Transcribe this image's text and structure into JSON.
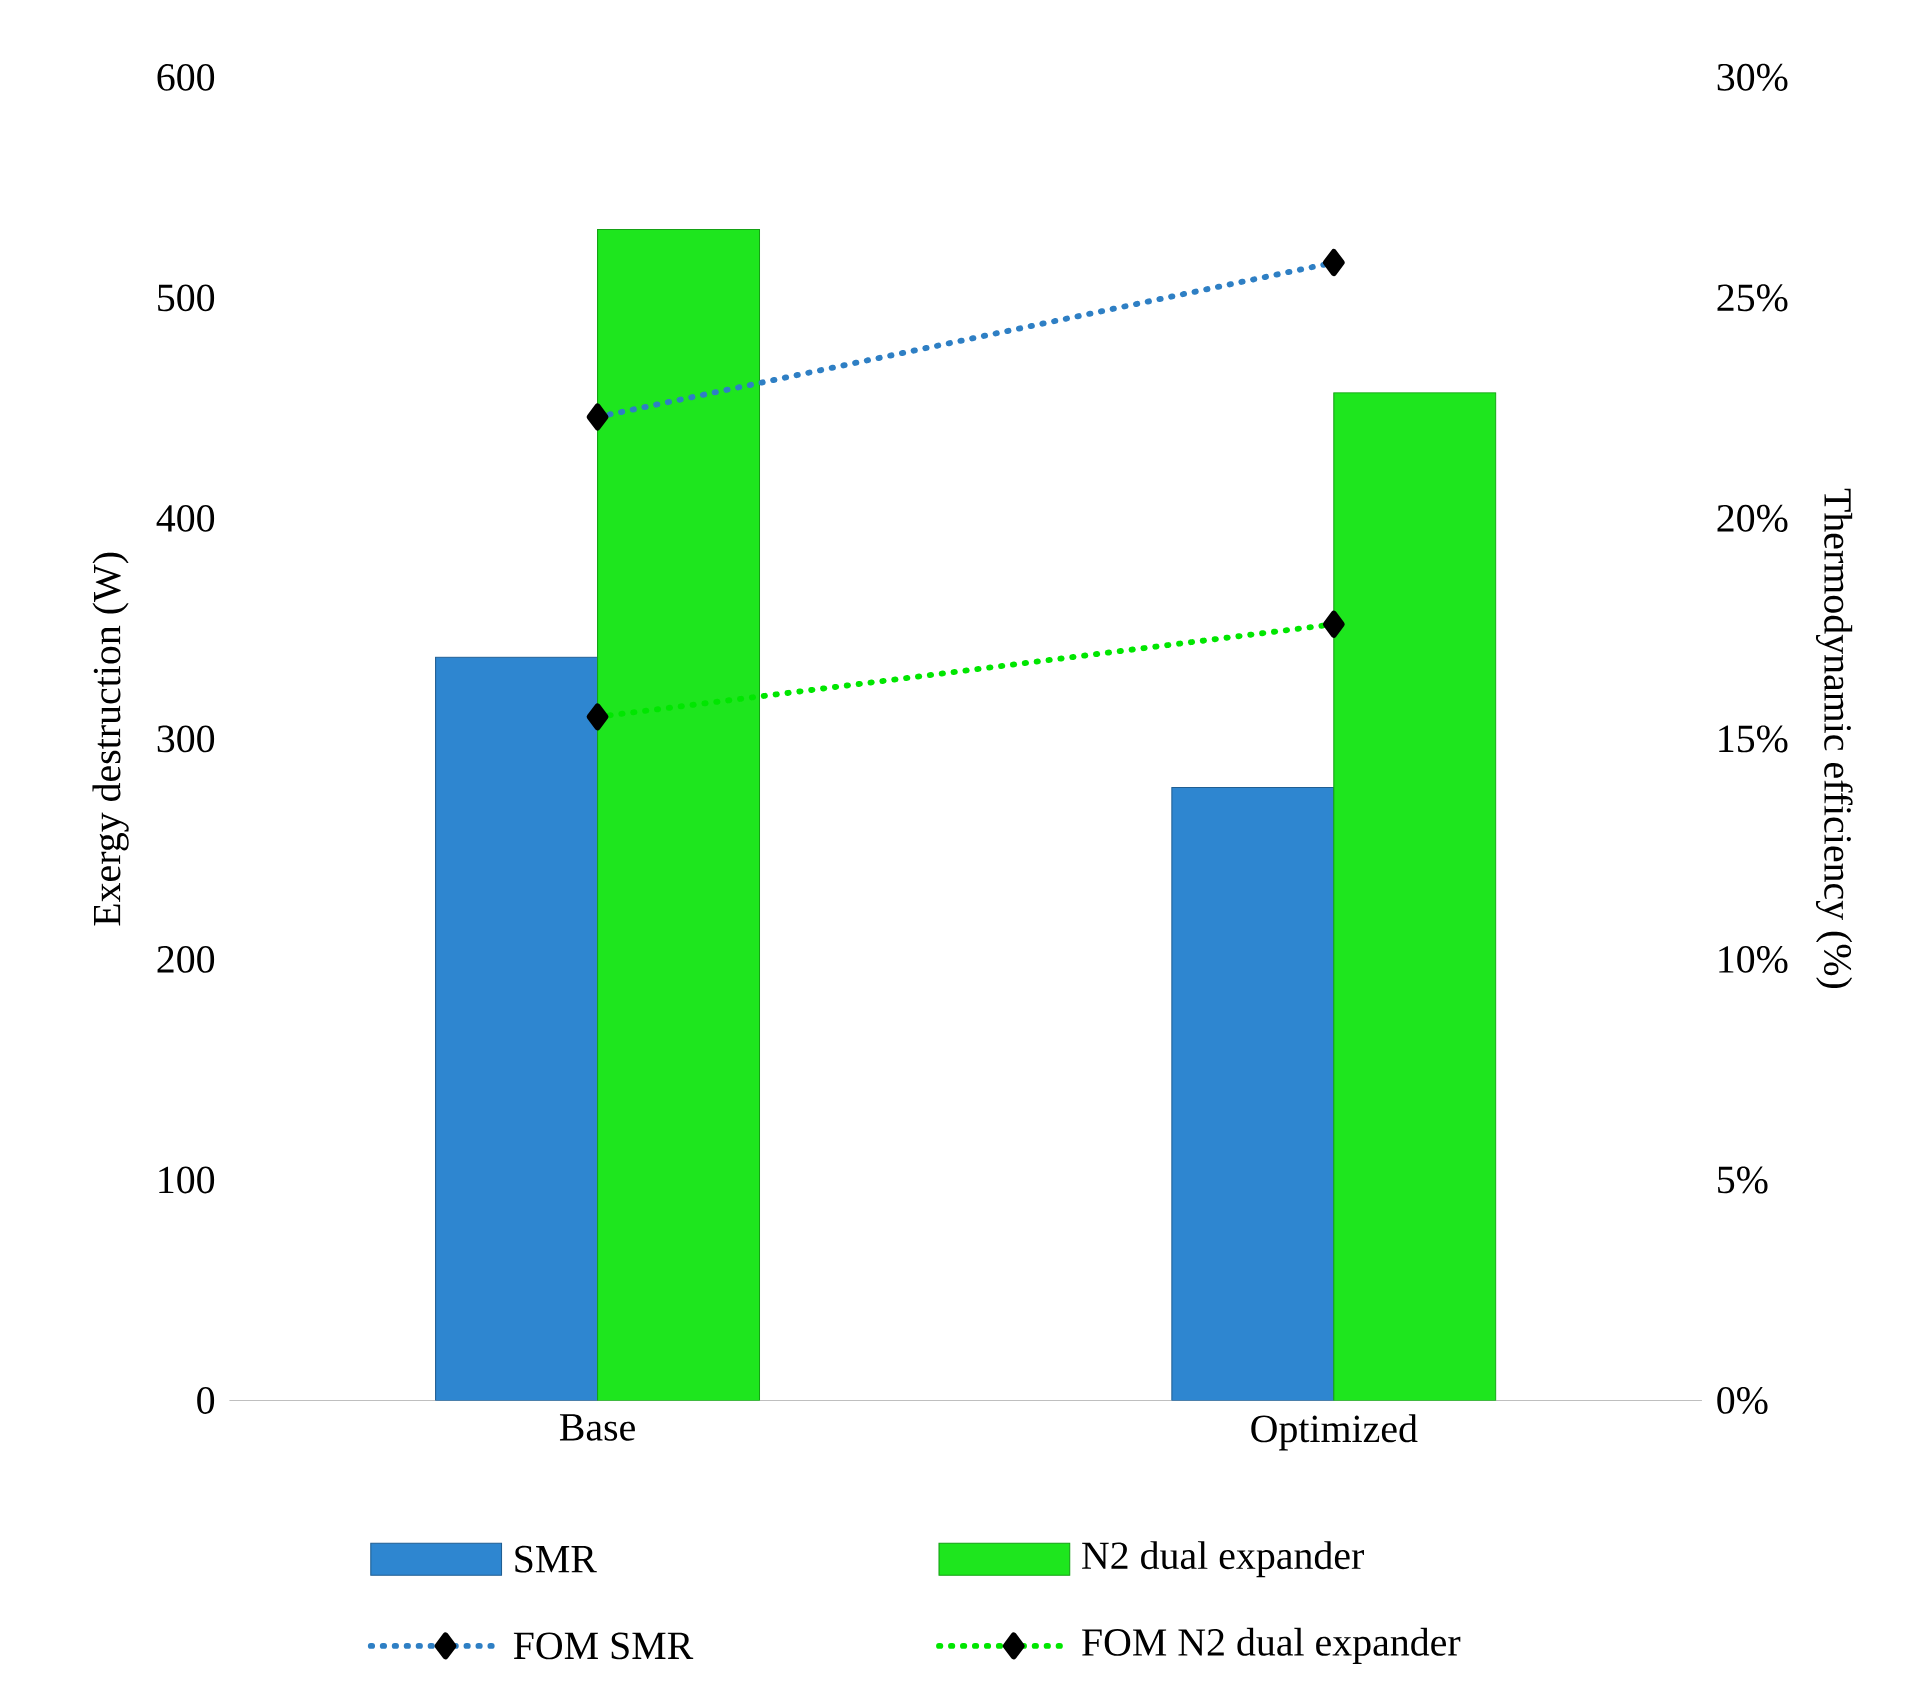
{
  "chart_data": {
    "type": "bar",
    "categories": [
      "Base",
      "Optimized"
    ],
    "ylabel": "Exergy destruction (W)",
    "y2label": "Thermodynamic efficiency (%)",
    "ylim": [
      0,
      600
    ],
    "yticks": [
      0,
      100,
      200,
      300,
      400,
      500,
      600
    ],
    "y2lim": [
      0,
      30
    ],
    "y2ticks": [
      {
        "value": 0,
        "label": "0%"
      },
      {
        "value": 5,
        "label": "5%"
      },
      {
        "value": 10,
        "label": "10%"
      },
      {
        "value": 15,
        "label": "15%"
      },
      {
        "value": 20,
        "label": "20%"
      },
      {
        "value": 25,
        "label": "25%"
      },
      {
        "value": 30,
        "label": "30%"
      }
    ],
    "legend": "bottom",
    "series": [
      {
        "name": "SMR",
        "color": "#2e86d0",
        "values": [
          337,
          278
        ]
      },
      {
        "name": "N2 dual expander",
        "color": "#1ee61e",
        "values": [
          531,
          457
        ]
      },
      {
        "name": "FOM SMR",
        "type": "line",
        "axis": "y2",
        "color": "#2e7fc4",
        "marker": "diamond",
        "line_style": "dotted",
        "values": [
          22.3,
          25.8
        ]
      },
      {
        "name": "FOM N2 dual expander",
        "type": "line",
        "axis": "y2",
        "color": "#00e600",
        "marker": "diamond",
        "line_style": "dotted",
        "values": [
          15.5,
          17.6
        ]
      }
    ]
  }
}
